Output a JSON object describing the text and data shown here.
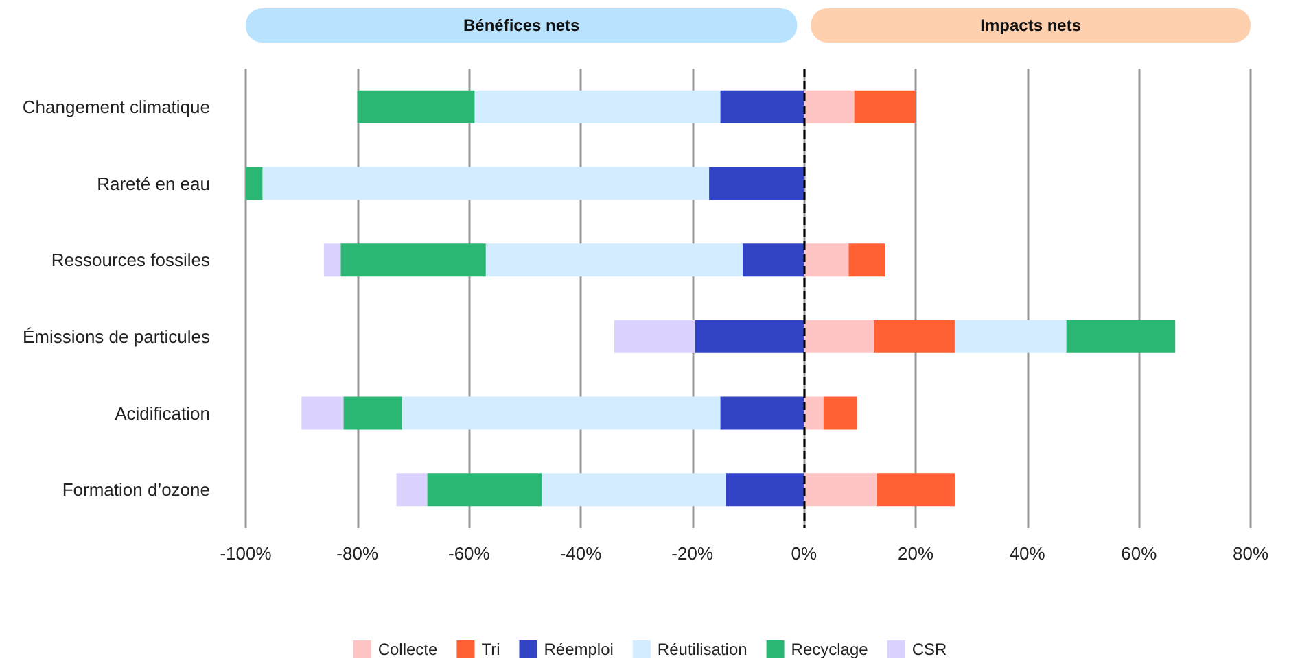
{
  "chart_data": {
    "type": "bar",
    "orientation": "horizontal",
    "stacked": true,
    "categories": [
      "Changement climatique",
      "Rareté en eau",
      "Ressources fossiles",
      "Émissions de particules",
      "Acidification",
      "Formation d’ozone"
    ],
    "series": [
      {
        "name": "Collecte",
        "color": "#ffc4c4",
        "values": [
          9,
          null,
          8,
          12.5,
          3.5,
          13
        ]
      },
      {
        "name": "Tri",
        "color": "#ff6135",
        "values": [
          11,
          null,
          6.5,
          14.5,
          6,
          14
        ]
      },
      {
        "name": "Réemploi",
        "color": "#3343c5",
        "values": [
          -15,
          -17,
          -11,
          -19.5,
          -15,
          -14
        ]
      },
      {
        "name": "Réutilisation",
        "color": "#d3ecff",
        "values": [
          -44,
          -80,
          -46,
          20,
          -57,
          -33
        ]
      },
      {
        "name": "Recyclage",
        "color": "#2bb673",
        "values": [
          -21,
          -3,
          -26,
          19.5,
          -10.5,
          -20.5
        ]
      },
      {
        "name": "CSR",
        "color": "#dbd2ff",
        "values": [
          null,
          null,
          -3,
          -14.5,
          -7.5,
          -5.5
        ]
      }
    ],
    "xlim": [
      -100,
      80
    ],
    "xticks": [
      {
        "value": -100,
        "label": "-100%"
      },
      {
        "value": -80,
        "label": "-80%"
      },
      {
        "value": -60,
        "label": "-60%"
      },
      {
        "value": -40,
        "label": "-40%"
      },
      {
        "value": -20,
        "label": "-20%"
      },
      {
        "value": 0,
        "label": "0%"
      },
      {
        "value": 20,
        "label": "20%"
      },
      {
        "value": 40,
        "label": "40%"
      },
      {
        "value": 60,
        "label": "60%"
      },
      {
        "value": 80,
        "label": "80%"
      }
    ],
    "ref_lines": [
      {
        "axis": "x",
        "value": 0,
        "color": "#000000",
        "line_style": "dashed"
      }
    ],
    "annotations": [
      "Bénéfices nets",
      "Impacts nets"
    ],
    "grid": "x",
    "legend": "bottom"
  }
}
